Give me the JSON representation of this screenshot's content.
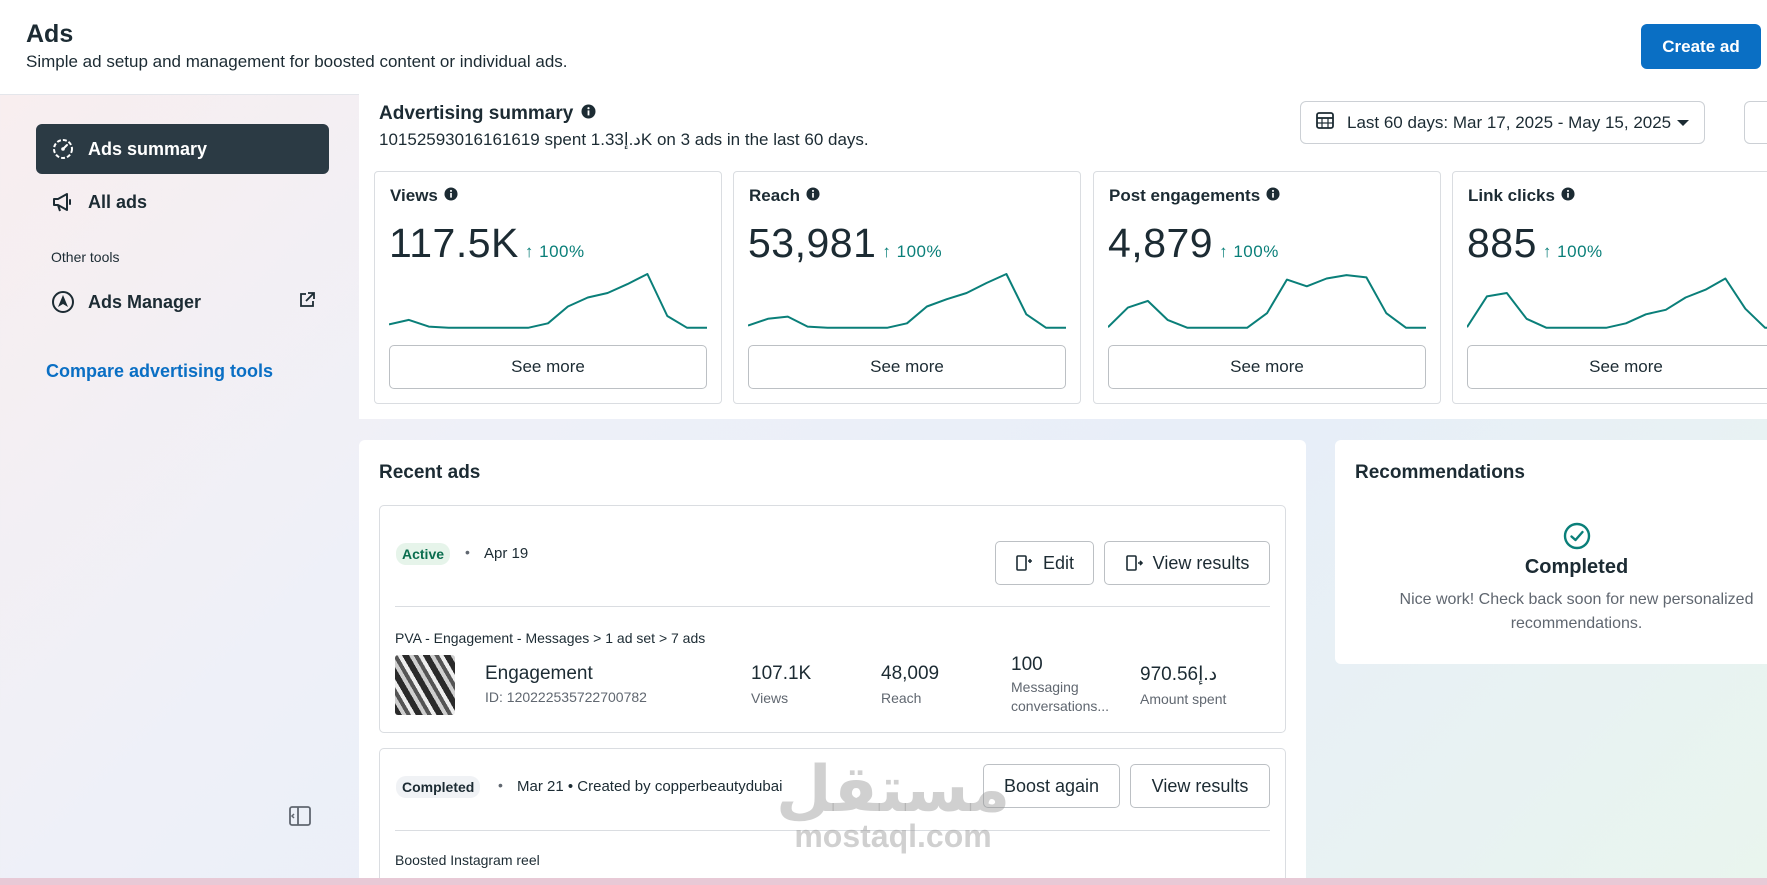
{
  "header": {
    "title": "Ads",
    "subtitle": "Simple ad setup and management for boosted content or individual ads.",
    "create_label": "Create ad"
  },
  "sidebar": {
    "items": [
      {
        "label": "Ads summary",
        "icon": "gauge-icon"
      },
      {
        "label": "All ads",
        "icon": "megaphone-icon"
      }
    ],
    "other_tools_label": "Other tools",
    "ads_manager_label": "Ads Manager",
    "compare_label": "Compare advertising tools"
  },
  "summary": {
    "title": "Advertising summary",
    "text": "10152593016161619 spent 1.33د.إK on 3 ads in the last 60 days.",
    "date_range": "Last 60 days: Mar 17, 2025 - May 15, 2025"
  },
  "metrics": [
    {
      "label": "Views",
      "value": "117.5K",
      "change": "100%",
      "see_more": "See more",
      "spark": [
        0.1,
        0.18,
        0.06,
        0.04,
        0.04,
        0.04,
        0.04,
        0.04,
        0.12,
        0.42,
        0.58,
        0.66,
        0.82,
        1.0,
        0.25,
        0.04,
        0.04
      ]
    },
    {
      "label": "Reach",
      "value": "53,981",
      "change": "100%",
      "see_more": "See more",
      "spark": [
        0.08,
        0.2,
        0.24,
        0.06,
        0.04,
        0.04,
        0.04,
        0.04,
        0.12,
        0.42,
        0.55,
        0.66,
        0.84,
        1.0,
        0.28,
        0.04,
        0.04
      ]
    },
    {
      "label": "Post engagements",
      "value": "4,879",
      "change": "100%",
      "see_more": "See more",
      "spark": [
        0.05,
        0.4,
        0.52,
        0.18,
        0.04,
        0.04,
        0.04,
        0.04,
        0.3,
        0.9,
        0.78,
        0.92,
        0.98,
        0.94,
        0.3,
        0.04,
        0.04
      ]
    },
    {
      "label": "Link clicks",
      "value": "885",
      "change": "100%",
      "see_more": "See more",
      "spark": [
        0.05,
        0.6,
        0.66,
        0.2,
        0.04,
        0.04,
        0.04,
        0.04,
        0.12,
        0.28,
        0.36,
        0.58,
        0.72,
        0.92,
        0.38,
        0.04,
        0.04
      ]
    }
  ],
  "recent_ads": {
    "title": "Recent ads",
    "ad1": {
      "status": "Active",
      "date": "Apr 19",
      "edit_label": "Edit",
      "view_label": "View results",
      "path": "PVA - Engagement - Messages > 1 ad set > 7 ads",
      "name": "Engagement",
      "id": "ID: 120222535722700782",
      "stats": [
        {
          "value": "107.1K",
          "label": "Views"
        },
        {
          "value": "48,009",
          "label": "Reach"
        },
        {
          "value": "100",
          "label": "Messaging conversations..."
        },
        {
          "value": "970.56د.إ",
          "label": "Amount spent"
        }
      ]
    },
    "ad2": {
      "status": "Completed",
      "meta": "Mar 21 • Created by copperbeautydubai",
      "boost_label": "Boost again",
      "view_label": "View results",
      "type": "Boosted Instagram reel"
    }
  },
  "recommendations": {
    "title": "Recommendations",
    "status": "Completed",
    "description": "Nice work! Check back soon for new personalized recommendations."
  },
  "watermark": {
    "arabic": "مستقل",
    "latin": "mostaql.com"
  },
  "colors": {
    "accent": "#0a6fc4",
    "positive": "#0a7f79",
    "nav_active_bg": "#2b3a44"
  }
}
